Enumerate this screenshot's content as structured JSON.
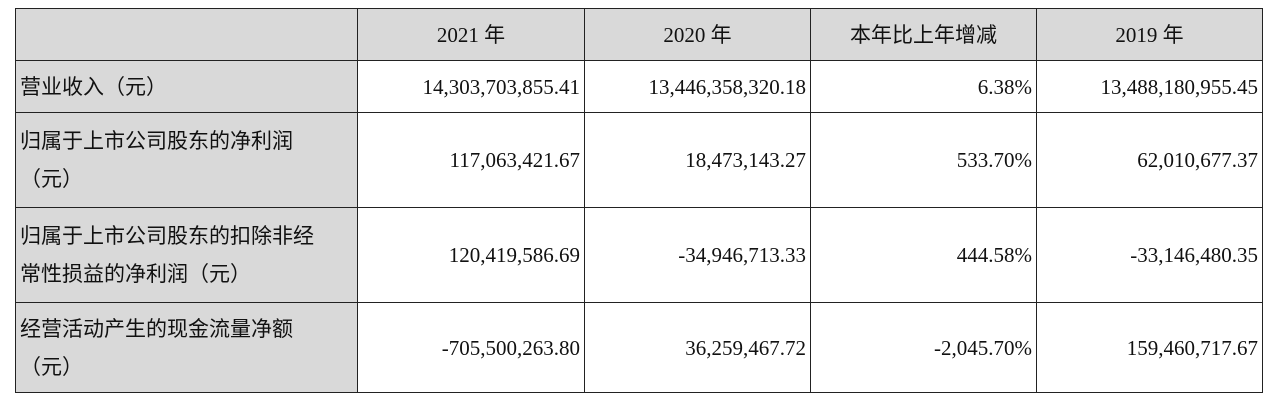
{
  "table": {
    "header": [
      "",
      "2021 年",
      "2020 年",
      "本年比上年增减",
      "2019 年"
    ],
    "rows": [
      {
        "label": [
          "营业收入（元）"
        ],
        "cells": [
          "14,303,703,855.41",
          "13,446,358,320.18",
          "6.38%",
          "13,488,180,955.45"
        ]
      },
      {
        "label": [
          "归属于上市公司股东的净利润",
          "（元）"
        ],
        "cells": [
          "117,063,421.67",
          "18,473,143.27",
          "533.70%",
          "62,010,677.37"
        ]
      },
      {
        "label": [
          "归属于上市公司股东的扣除非经",
          "常性损益的净利润（元）"
        ],
        "cells": [
          "120,419,586.69",
          "-34,946,713.33",
          "444.58%",
          "-33,146,480.35"
        ]
      },
      {
        "label": [
          "经营活动产生的现金流量净额",
          "（元）"
        ],
        "cells": [
          "-705,500,263.80",
          "36,259,467.72",
          "-2,045.70%",
          "159,460,717.67"
        ]
      }
    ]
  }
}
